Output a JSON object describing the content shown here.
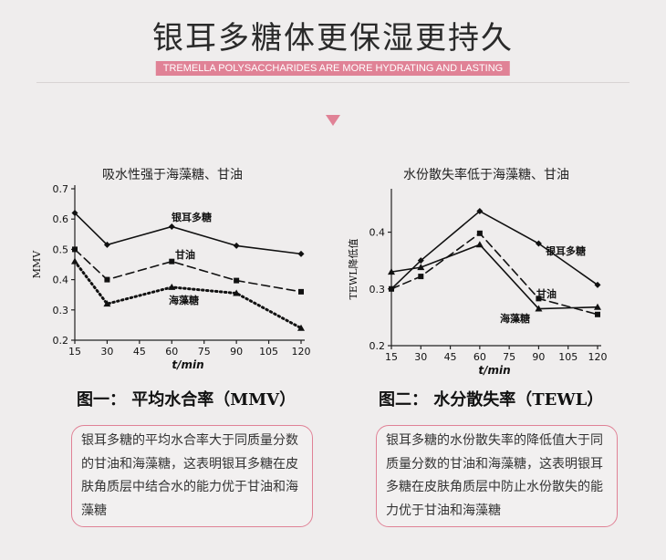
{
  "header": {
    "title": "银耳多糖体更保湿更持久",
    "subtitle": "TREMELLA POLYSACCHARIDES ARE MORE HYDRATING AND LASTING"
  },
  "accent_color": "#e08296",
  "charts": [
    {
      "title": "吸水性强于海藻糖、甘油",
      "caption": "图一：  平均水合率（MMV）",
      "description": "银耳多糖的平均水合率大于同质量分数的甘油和海藻糖，这表明银耳多糖在皮肤角质层中结合水的能力优于甘油和海藻糖"
    },
    {
      "title": "水份散失率低于海藻糖、甘油",
      "caption": "图二：  水分散失率（TEWL）",
      "description": "银耳多糖的水份散失率的降低值大于同质量分数的甘油和海藻糖，这表明银耳多糖在皮肤角质层中防止水份散失的能力优于甘油和海藻糖"
    }
  ],
  "chart_data": [
    {
      "type": "line",
      "title": "吸水性强于海藻糖、甘油",
      "xlabel": "t/min",
      "ylabel": "MMV",
      "x": [
        15,
        30,
        60,
        90,
        120
      ],
      "xticks": [
        15,
        30,
        45,
        60,
        75,
        90,
        105,
        120
      ],
      "yticks": [
        0.2,
        0.3,
        0.4,
        0.5,
        0.6,
        0.7
      ],
      "xlim": [
        15,
        120
      ],
      "ylim": [
        0.2,
        0.7
      ],
      "grid": false,
      "series": [
        {
          "name": "银耳多糖",
          "values": [
            0.62,
            0.515,
            0.575,
            0.512,
            0.485
          ],
          "style": "solid",
          "marker": "diamond"
        },
        {
          "name": "甘油",
          "values": [
            0.5,
            0.4,
            0.46,
            0.397,
            0.36
          ],
          "style": "dashed",
          "marker": "square"
        },
        {
          "name": "海藻糖",
          "values": [
            0.46,
            0.32,
            0.375,
            0.355,
            0.24
          ],
          "style": "dotted",
          "marker": "triangle"
        }
      ]
    },
    {
      "type": "line",
      "title": "水份散失率低于海藻糖、甘油",
      "xlabel": "t/min",
      "ylabel": "TEWL降低值",
      "x": [
        15,
        30,
        60,
        90,
        120
      ],
      "xticks": [
        15,
        30,
        45,
        60,
        75,
        90,
        105,
        120
      ],
      "yticks": [
        0.2,
        0.3,
        0.4
      ],
      "xlim": [
        15,
        120
      ],
      "ylim": [
        0.2,
        0.47
      ],
      "grid": false,
      "series": [
        {
          "name": "银耳多糖",
          "values": [
            0.3,
            0.35,
            0.437,
            0.38,
            0.307
          ],
          "style": "solid",
          "marker": "diamond"
        },
        {
          "name": "甘油",
          "values": [
            0.3,
            0.322,
            0.398,
            0.283,
            0.255
          ],
          "style": "dashed",
          "marker": "square"
        },
        {
          "name": "海藻糖",
          "values": [
            0.33,
            0.338,
            0.378,
            0.265,
            0.268
          ],
          "style": "solid",
          "marker": "triangle"
        }
      ]
    }
  ]
}
